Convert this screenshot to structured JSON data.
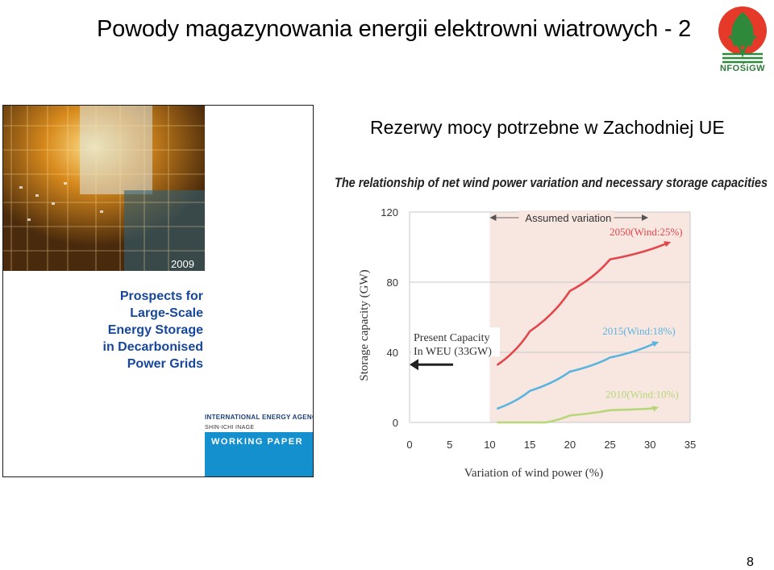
{
  "slide": {
    "title": "Powody magazynowania energii elektrowni wiatrowych - 2",
    "heading": "Rezerwy mocy potrzebne w Zachodniej UE",
    "page_number": "8"
  },
  "logo": {
    "text": "NFOŚiGW"
  },
  "cover": {
    "year": "2009",
    "title_lines": [
      "Prospects for",
      "Large-Scale",
      "Energy Storage",
      "in Decarbonised",
      "Power Grids"
    ],
    "agency": "INTERNATIONAL ENERGY AGENCY",
    "author": "SHIN-ICHI INAGE",
    "series": "WORKING PAPER"
  },
  "chart_data": {
    "type": "line",
    "title": "The relationship of net wind power variation and necessary storage capacities",
    "xlabel": "Variation of wind power (%)",
    "ylabel": "Storage capacity (GW)",
    "xlim": [
      0,
      35
    ],
    "ylim": [
      0,
      120
    ],
    "xticks": [
      "0",
      "5",
      "10",
      "15",
      "20",
      "25",
      "30",
      "35"
    ],
    "yticks": [
      "0",
      "40",
      "80",
      "120"
    ],
    "grid": true,
    "assumed_variation": {
      "label": "Assumed variation",
      "range": [
        10,
        35
      ]
    },
    "present_capacity": {
      "label_lines": [
        "Present Capacity",
        "In WEU (33GW)"
      ],
      "value": 33
    },
    "series": [
      {
        "name": "2050(Wind:25%)",
        "color": "#e2474c",
        "x": [
          11,
          15,
          20,
          25,
          32
        ],
        "y": [
          33,
          52,
          75,
          93,
          102
        ]
      },
      {
        "name": "2015(Wind:18%)",
        "color": "#5ab4e0",
        "x": [
          11,
          15,
          20,
          25,
          30.5
        ],
        "y": [
          8,
          18,
          29,
          37,
          45
        ]
      },
      {
        "name": "2010(Wind:10%)",
        "color": "#b7d77a",
        "x": [
          11,
          17,
          20,
          25,
          30.5
        ],
        "y": [
          0,
          0,
          4,
          7,
          8
        ]
      }
    ],
    "colors": {
      "band": "#f8e6e0",
      "grid": "#c8c8c8",
      "text": "#333333",
      "label_bg": "#ffffff"
    }
  }
}
